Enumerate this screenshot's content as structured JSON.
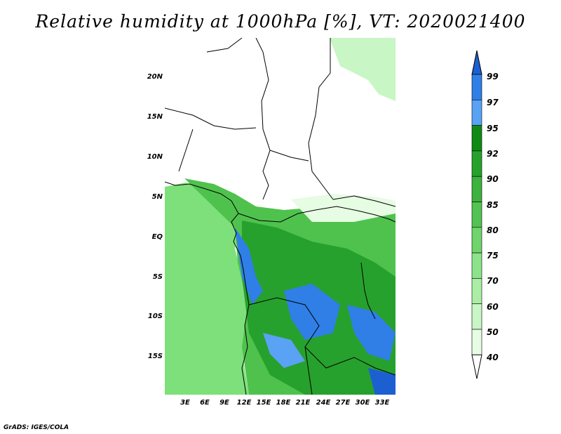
{
  "title": "Relative humidity at 1000hPa [%], VT: 2020021400",
  "credit": "GrADS: IGES/COLA",
  "lat_labels": [
    "20N",
    "15N",
    "10N",
    "5N",
    "EQ",
    "5S",
    "10S",
    "15S"
  ],
  "lon_labels": [
    "3E",
    "6E",
    "9E",
    "12E",
    "15E",
    "18E",
    "21E",
    "24E",
    "27E",
    "30E",
    "33E"
  ],
  "colorbar": {
    "labels": [
      "99",
      "97",
      "95",
      "92",
      "90",
      "85",
      "80",
      "75",
      "70",
      "60",
      "50",
      "40"
    ],
    "colors": [
      "#1c5fd1",
      "#2f7fe6",
      "#5aa2f3",
      "#0f8a16",
      "#26a22c",
      "#3cb23f",
      "#52c352",
      "#6fd46c",
      "#8de38a",
      "#aaeea6",
      "#c8f6c4",
      "#e6fce3",
      "#ffffff"
    ]
  }
}
